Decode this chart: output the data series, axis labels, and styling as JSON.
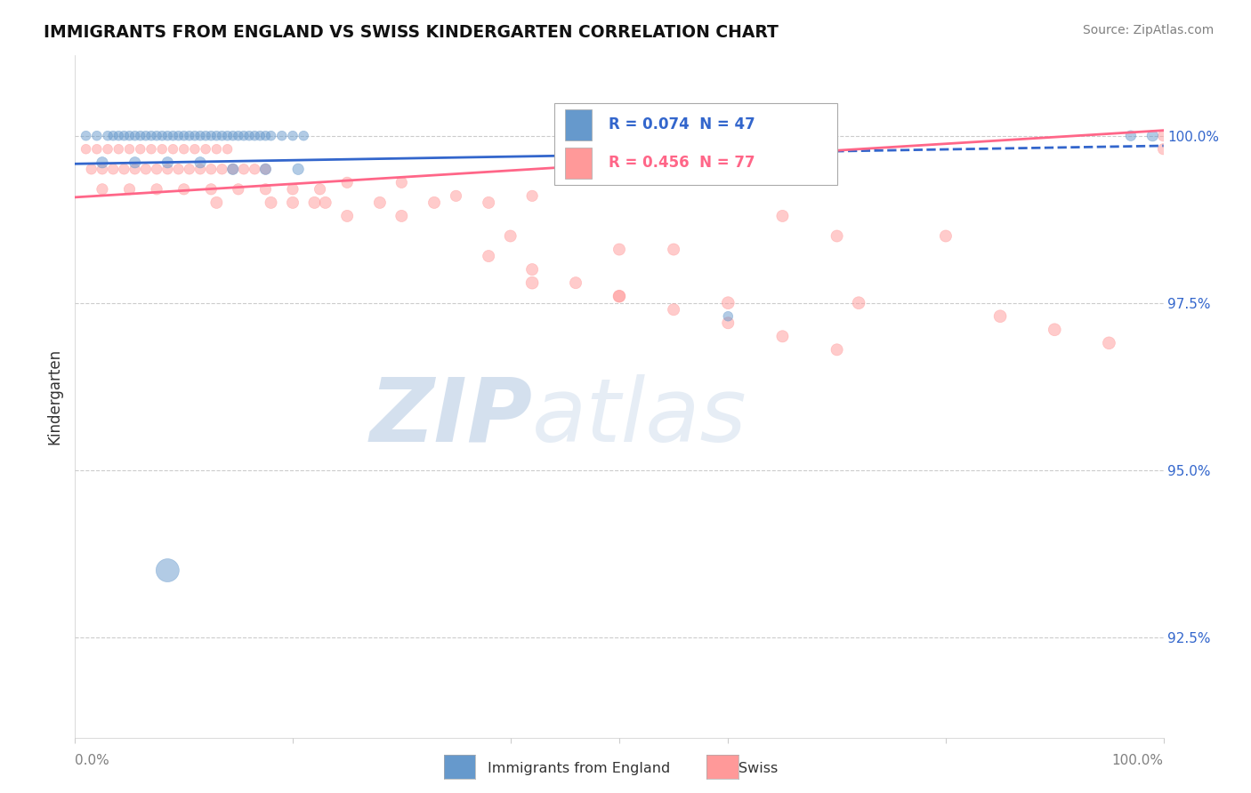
{
  "title": "IMMIGRANTS FROM ENGLAND VS SWISS KINDERGARTEN CORRELATION CHART",
  "source": "Source: ZipAtlas.com",
  "ylabel": "Kindergarten",
  "yticks": [
    92.5,
    95.0,
    97.5,
    100.0
  ],
  "ytick_labels": [
    "92.5%",
    "95.0%",
    "97.5%",
    "100.0%"
  ],
  "xlim": [
    0.0,
    1.0
  ],
  "ylim": [
    91.0,
    101.2
  ],
  "blue_color": "#6699CC",
  "pink_color": "#FF9999",
  "blue_line_color": "#3366CC",
  "pink_line_color": "#FF6688",
  "legend_R_blue": "R = 0.074",
  "legend_N_blue": "N = 47",
  "legend_R_pink": "R = 0.456",
  "legend_N_pink": "N = 77",
  "blue_line_x0": 0.0,
  "blue_line_y0": 99.58,
  "blue_line_x1": 1.0,
  "blue_line_y1": 99.85,
  "blue_line_solid_end": 0.65,
  "pink_line_x0": 0.0,
  "pink_line_y0": 99.08,
  "pink_line_x1": 1.0,
  "pink_line_y1": 100.08,
  "blue_pts_x": [
    0.01,
    0.02,
    0.03,
    0.035,
    0.04,
    0.045,
    0.05,
    0.055,
    0.06,
    0.065,
    0.07,
    0.075,
    0.08,
    0.085,
    0.09,
    0.095,
    0.1,
    0.105,
    0.11,
    0.115,
    0.12,
    0.125,
    0.13,
    0.135,
    0.14,
    0.145,
    0.15,
    0.155,
    0.16,
    0.165,
    0.17,
    0.175,
    0.18,
    0.19,
    0.2,
    0.21,
    0.025,
    0.055,
    0.085,
    0.115,
    0.145,
    0.175,
    0.205,
    0.6,
    0.97,
    0.99,
    0.085
  ],
  "blue_pts_y": [
    100.0,
    100.0,
    100.0,
    100.0,
    100.0,
    100.0,
    100.0,
    100.0,
    100.0,
    100.0,
    100.0,
    100.0,
    100.0,
    100.0,
    100.0,
    100.0,
    100.0,
    100.0,
    100.0,
    100.0,
    100.0,
    100.0,
    100.0,
    100.0,
    100.0,
    100.0,
    100.0,
    100.0,
    100.0,
    100.0,
    100.0,
    100.0,
    100.0,
    100.0,
    100.0,
    100.0,
    99.6,
    99.6,
    99.6,
    99.6,
    99.5,
    99.5,
    99.5,
    97.3,
    100.0,
    100.0,
    93.5
  ],
  "blue_pts_size": [
    60,
    60,
    60,
    60,
    60,
    60,
    60,
    60,
    60,
    60,
    60,
    60,
    60,
    60,
    60,
    60,
    60,
    60,
    60,
    60,
    60,
    60,
    60,
    60,
    60,
    60,
    60,
    60,
    60,
    60,
    60,
    60,
    60,
    60,
    60,
    60,
    80,
    80,
    80,
    80,
    80,
    80,
    80,
    60,
    70,
    80,
    350
  ],
  "pink_pts_x": [
    0.01,
    0.02,
    0.03,
    0.04,
    0.05,
    0.06,
    0.07,
    0.08,
    0.09,
    0.1,
    0.11,
    0.12,
    0.13,
    0.14,
    0.015,
    0.025,
    0.035,
    0.045,
    0.055,
    0.065,
    0.075,
    0.085,
    0.095,
    0.105,
    0.115,
    0.125,
    0.135,
    0.145,
    0.155,
    0.165,
    0.175,
    0.025,
    0.05,
    0.075,
    0.1,
    0.125,
    0.15,
    0.175,
    0.2,
    0.225,
    0.13,
    0.18,
    0.23,
    0.28,
    0.33,
    0.38,
    0.25,
    0.3,
    0.35,
    0.42,
    0.2,
    0.22,
    0.25,
    0.3,
    0.4,
    0.5,
    0.55,
    0.42,
    0.5,
    0.6,
    0.65,
    0.7,
    0.8,
    0.72,
    0.85,
    0.9,
    0.95,
    1.0,
    0.38,
    0.42,
    0.46,
    0.5,
    0.55,
    0.6,
    0.65,
    0.7,
    1.0
  ],
  "pink_pts_y": [
    99.8,
    99.8,
    99.8,
    99.8,
    99.8,
    99.8,
    99.8,
    99.8,
    99.8,
    99.8,
    99.8,
    99.8,
    99.8,
    99.8,
    99.5,
    99.5,
    99.5,
    99.5,
    99.5,
    99.5,
    99.5,
    99.5,
    99.5,
    99.5,
    99.5,
    99.5,
    99.5,
    99.5,
    99.5,
    99.5,
    99.5,
    99.2,
    99.2,
    99.2,
    99.2,
    99.2,
    99.2,
    99.2,
    99.2,
    99.2,
    99.0,
    99.0,
    99.0,
    99.0,
    99.0,
    99.0,
    99.3,
    99.3,
    99.1,
    99.1,
    99.0,
    99.0,
    98.8,
    98.8,
    98.5,
    98.3,
    98.3,
    97.8,
    97.6,
    97.5,
    98.8,
    98.5,
    98.5,
    97.5,
    97.3,
    97.1,
    96.9,
    100.0,
    98.2,
    98.0,
    97.8,
    97.6,
    97.4,
    97.2,
    97.0,
    96.8,
    99.8
  ],
  "pink_pts_size": [
    60,
    60,
    60,
    60,
    60,
    60,
    60,
    60,
    60,
    60,
    60,
    60,
    60,
    60,
    70,
    70,
    70,
    70,
    70,
    70,
    70,
    70,
    70,
    70,
    70,
    70,
    70,
    70,
    70,
    70,
    70,
    80,
    80,
    80,
    80,
    80,
    80,
    80,
    80,
    80,
    90,
    90,
    90,
    90,
    90,
    90,
    80,
    80,
    80,
    80,
    90,
    90,
    90,
    90,
    90,
    90,
    90,
    100,
    100,
    100,
    90,
    90,
    90,
    100,
    100,
    100,
    100,
    80,
    90,
    90,
    90,
    90,
    90,
    90,
    90,
    90,
    80
  ]
}
